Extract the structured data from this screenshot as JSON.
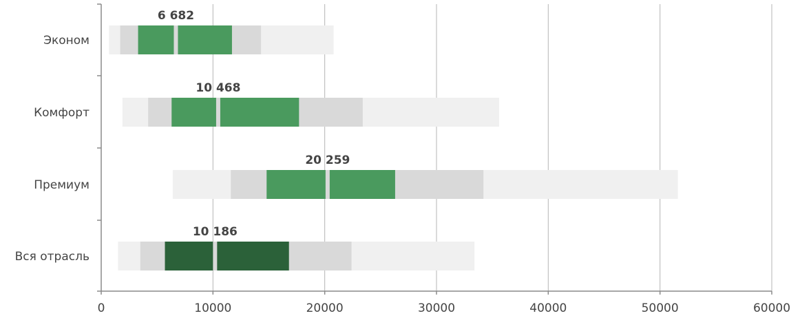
{
  "chart_data": {
    "type": "bar",
    "orientation": "horizontal",
    "title": "",
    "xlabel": "",
    "ylabel": "",
    "xlim": [
      0,
      60000
    ],
    "x_ticks": [
      0,
      10000,
      20000,
      30000,
      40000,
      50000,
      60000
    ],
    "x_tick_labels": [
      "0",
      "10000",
      "20000",
      "30000",
      "40000",
      "50000",
      "60000"
    ],
    "grid": "vertical",
    "categories": [
      "Эконом",
      "Комфорт",
      "Премиум",
      "Вся отрасль"
    ],
    "rows": [
      {
        "name": "Эконом",
        "min": 700,
        "p10": 1700,
        "p25": 3300,
        "median": 6682,
        "p75": 11700,
        "p90": 14300,
        "max": 20800,
        "median_label": "6 682",
        "color": "#4a9a5e"
      },
      {
        "name": "Комфорт",
        "min": 1900,
        "p10": 4200,
        "p25": 6300,
        "median": 10468,
        "p75": 17700,
        "p90": 23400,
        "max": 35600,
        "median_label": "10 468",
        "color": "#4a9a5e"
      },
      {
        "name": "Премиум",
        "min": 6400,
        "p10": 11600,
        "p25": 14800,
        "median": 20259,
        "p75": 26300,
        "p90": 34200,
        "max": 51600,
        "median_label": "20 259",
        "color": "#4a9a5e"
      },
      {
        "name": "Вся отрасль",
        "min": 1500,
        "p10": 3500,
        "p25": 5700,
        "median": 10186,
        "p75": 16800,
        "p90": 22400,
        "max": 33400,
        "median_label": "10 186",
        "color": "#2b6139"
      }
    ],
    "colors": {
      "outer_range": "#f0f0f0",
      "inner_range": "#d9d9d9",
      "grid": "#b5b5b5",
      "axis": "#8a8a8a"
    }
  }
}
